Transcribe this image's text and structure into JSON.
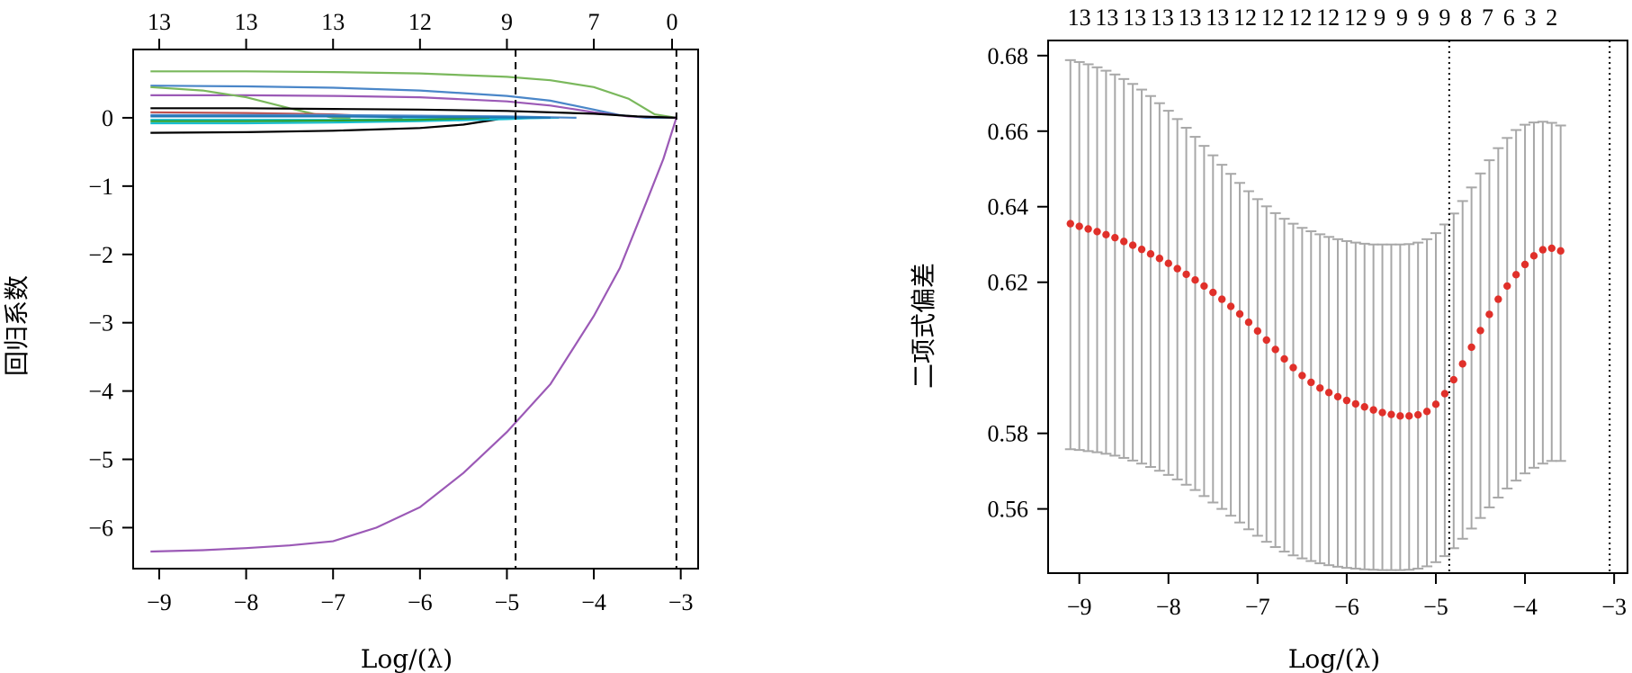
{
  "chart_data": [
    {
      "type": "line",
      "title": "",
      "xlabel": "Log/(λ)",
      "ylabel": "回归系数",
      "xlim": [
        -9.3,
        -2.8
      ],
      "ylim": [
        -6.6,
        1.0
      ],
      "x_ticks": [
        -9,
        -8,
        -7,
        -6,
        -5,
        -4,
        -3
      ],
      "x_tick_labels": [
        "−9",
        "−8",
        "−7",
        "−6",
        "−5",
        "−4",
        "−3"
      ],
      "y_ticks": [
        0,
        -1,
        -2,
        -3,
        -4,
        -5,
        -6
      ],
      "y_tick_labels": [
        "0",
        "−1",
        "−2",
        "−3",
        "−4",
        "−5",
        "−6"
      ],
      "top_axis": {
        "positions": [
          -9,
          -8,
          -7,
          -6,
          -5,
          -4,
          -3.1
        ],
        "labels": [
          "13",
          "13",
          "13",
          "12",
          "9",
          "7",
          "0"
        ]
      },
      "vlines": [
        {
          "x": -4.9,
          "style": "dashed"
        },
        {
          "x": -3.05,
          "style": "dashed"
        }
      ],
      "series": [
        {
          "color": "#7ab85c",
          "x": [
            -9.1,
            -8,
            -7,
            -6,
            -5,
            -4.5,
            -4,
            -3.6,
            -3.3,
            -3.05
          ],
          "y": [
            0.68,
            0.68,
            0.67,
            0.65,
            0.6,
            0.55,
            0.45,
            0.28,
            0.05,
            0
          ]
        },
        {
          "color": "#4a86c8",
          "x": [
            -9.1,
            -8,
            -7,
            -6,
            -5,
            -4.5,
            -4,
            -3.7,
            -3.4,
            -3.05
          ],
          "y": [
            0.47,
            0.46,
            0.44,
            0.4,
            0.32,
            0.25,
            0.12,
            0.04,
            0,
            0
          ]
        },
        {
          "color": "#9b59b6",
          "x": [
            -9.1,
            -8,
            -7,
            -6,
            -5,
            -4.5,
            -4,
            -3.6,
            -3.05
          ],
          "y": [
            0.33,
            0.33,
            0.32,
            0.3,
            0.24,
            0.18,
            0.08,
            0.02,
            0
          ]
        },
        {
          "color": "#7ab85c",
          "x": [
            -9.1,
            -8.5,
            -8,
            -7.5,
            -7.2,
            -7,
            -6.8
          ],
          "y": [
            0.45,
            0.4,
            0.3,
            0.14,
            0.05,
            0,
            0
          ]
        },
        {
          "color": "#000000",
          "x": [
            -9.1,
            -8,
            -7,
            -6,
            -5,
            -4,
            -3.5,
            -3.05
          ],
          "y": [
            0.14,
            0.14,
            0.13,
            0.12,
            0.1,
            0.06,
            0.02,
            0
          ]
        },
        {
          "color": "#000000",
          "x": [
            -9.1,
            -8,
            -7,
            -6,
            -5.5,
            -5.2,
            -5
          ],
          "y": [
            -0.22,
            -0.21,
            -0.19,
            -0.15,
            -0.1,
            -0.04,
            0
          ]
        },
        {
          "color": "#c0504d",
          "x": [
            -9.1,
            -8,
            -7,
            -6.5,
            -6.2
          ],
          "y": [
            0.08,
            0.07,
            0.05,
            0.02,
            0
          ]
        },
        {
          "color": "#17becf",
          "x": [
            -9.1,
            -8,
            -7,
            -6,
            -5,
            -4.6
          ],
          "y": [
            -0.08,
            -0.08,
            -0.07,
            -0.05,
            -0.02,
            0
          ]
        },
        {
          "color": "#17becf",
          "x": [
            -9.1,
            -8,
            -7,
            -6,
            -5,
            -4.4
          ],
          "y": [
            -0.03,
            -0.03,
            -0.03,
            -0.02,
            -0.01,
            0
          ]
        },
        {
          "color": "#4a86c8",
          "x": [
            -9.1,
            -8,
            -7,
            -6,
            -5,
            -4.2
          ],
          "y": [
            0.04,
            0.04,
            0.04,
            0.03,
            0.02,
            0
          ]
        },
        {
          "color": "#2ca02c",
          "x": [
            -9.1,
            -8,
            -7,
            -6,
            -5.2
          ],
          "y": [
            -0.05,
            -0.05,
            -0.04,
            -0.03,
            0
          ]
        },
        {
          "color": "#1f77b4",
          "x": [
            -9.1,
            -8,
            -7,
            -6,
            -5,
            -4.5
          ],
          "y": [
            0.02,
            0.02,
            0.02,
            0.01,
            0.005,
            0
          ]
        },
        {
          "color": "#9b59b6",
          "x": [
            -9.1,
            -8.5,
            -8,
            -7.5,
            -7,
            -6.5,
            -6,
            -5.5,
            -5,
            -4.5,
            -4,
            -3.7,
            -3.4,
            -3.2,
            -3.05
          ],
          "y": [
            -6.35,
            -6.33,
            -6.3,
            -6.26,
            -6.2,
            -6.0,
            -5.7,
            -5.2,
            -4.6,
            -3.9,
            -2.9,
            -2.2,
            -1.25,
            -0.6,
            0
          ]
        }
      ]
    },
    {
      "type": "scatter",
      "title": "",
      "xlabel": "Log/(λ)",
      "ylabel": "二项式偏差",
      "xlim": [
        -9.35,
        -2.85
      ],
      "ylim": [
        0.543,
        0.684
      ],
      "x_ticks": [
        -9,
        -8,
        -7,
        -6,
        -5,
        -4,
        -3
      ],
      "x_tick_labels": [
        "−9",
        "−8",
        "−7",
        "−6",
        "−5",
        "−4",
        "−3"
      ],
      "y_ticks": [
        0.56,
        0.58,
        0.62,
        0.64,
        0.66,
        0.68
      ],
      "y_tick_labels": [
        "0.56",
        "0.58",
        "0.62",
        "0.64",
        "0.66",
        "0.68"
      ],
      "top_axis": {
        "positions": [
          -9,
          -8.69,
          -8.38,
          -8.07,
          -7.76,
          -7.45,
          -7.14,
          -6.83,
          -6.52,
          -6.21,
          -5.9,
          -5.63,
          -5.38,
          -5.14,
          -4.9,
          -4.66,
          -4.42,
          -4.18,
          -3.94,
          -3.7
        ],
        "labels": [
          "13",
          "13",
          "13",
          "13",
          "13",
          "13",
          "12",
          "12",
          "12",
          "12",
          "12",
          "9",
          "9",
          "9",
          "9",
          "8",
          "7",
          "6",
          "3",
          "2"
        ]
      },
      "vlines": [
        {
          "x": -4.85,
          "style": "dotted"
        },
        {
          "x": -3.05,
          "style": "dotted"
        }
      ],
      "points": {
        "x_start": -9.1,
        "x_step": 0.1,
        "mean": [
          0.6355,
          0.6348,
          0.6341,
          0.6334,
          0.6326,
          0.6318,
          0.6308,
          0.6298,
          0.6287,
          0.6275,
          0.6263,
          0.625,
          0.6236,
          0.6221,
          0.6206,
          0.619,
          0.6173,
          0.6155,
          0.6136,
          0.6116,
          0.6094,
          0.6071,
          0.6047,
          0.6022,
          0.5997,
          0.5974,
          0.5953,
          0.5935,
          0.592,
          0.5908,
          0.5897,
          0.5887,
          0.5878,
          0.587,
          0.5862,
          0.5855,
          0.585,
          0.5846,
          0.5846,
          0.5849,
          0.5858,
          0.5877,
          0.5905,
          0.5942,
          0.5984,
          0.6028,
          0.6072,
          0.6115,
          0.6155,
          0.619,
          0.622,
          0.6247,
          0.627,
          0.6286,
          0.629,
          0.6283
        ],
        "upper": [
          0.6788,
          0.6783,
          0.6777,
          0.6769,
          0.676,
          0.675,
          0.6738,
          0.6725,
          0.671,
          0.6693,
          0.6674,
          0.6654,
          0.6632,
          0.6609,
          0.6585,
          0.6561,
          0.6536,
          0.6511,
          0.6487,
          0.6463,
          0.6441,
          0.642,
          0.6401,
          0.6383,
          0.6368,
          0.6355,
          0.6344,
          0.6335,
          0.6327,
          0.632,
          0.6314,
          0.6309,
          0.6305,
          0.6302,
          0.63,
          0.63,
          0.63,
          0.63,
          0.6301,
          0.6305,
          0.6314,
          0.633,
          0.6353,
          0.6382,
          0.6415,
          0.6451,
          0.6488,
          0.6523,
          0.6555,
          0.6582,
          0.6603,
          0.6617,
          0.6623,
          0.6625,
          0.6622,
          0.6615
        ],
        "lower": [
          0.5758,
          0.5756,
          0.5753,
          0.575,
          0.5746,
          0.5741,
          0.5735,
          0.5728,
          0.572,
          0.5711,
          0.5701,
          0.569,
          0.5678,
          0.5664,
          0.565,
          0.5634,
          0.5617,
          0.56,
          0.5582,
          0.5564,
          0.5546,
          0.5529,
          0.5513,
          0.5499,
          0.5487,
          0.5477,
          0.5469,
          0.5462,
          0.5456,
          0.5451,
          0.5447,
          0.5444,
          0.5442,
          0.544,
          0.5439,
          0.5438,
          0.5438,
          0.5438,
          0.5439,
          0.5442,
          0.5448,
          0.5459,
          0.5475,
          0.5496,
          0.5521,
          0.5548,
          0.5576,
          0.5604,
          0.563,
          0.5654,
          0.5675,
          0.5694,
          0.5709,
          0.572,
          0.5727,
          0.5727
        ]
      }
    }
  ]
}
